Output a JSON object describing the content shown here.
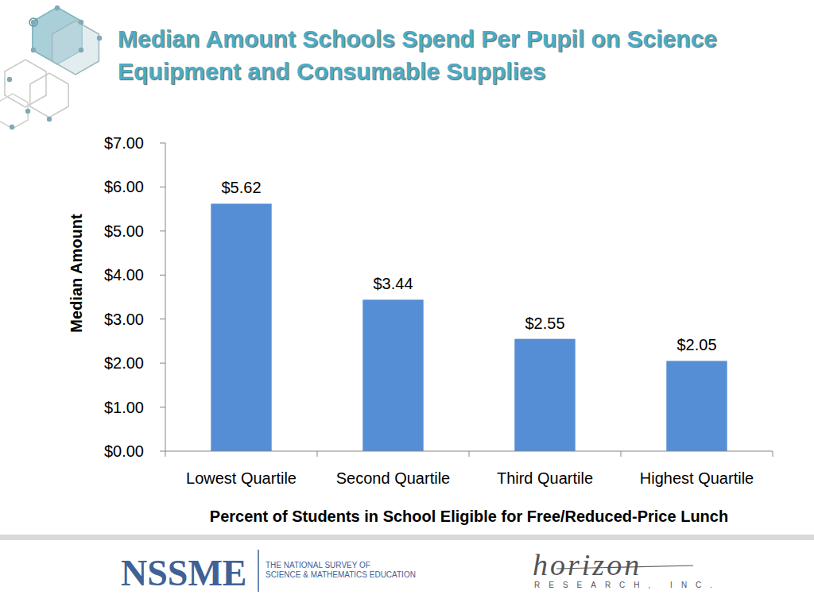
{
  "chart_data": {
    "type": "bar",
    "title": "Median Amount Schools Spend Per Pupil on Science Equipment and Consumable Supplies",
    "x_label": "Percent of Students in School Eligible for Free/Reduced-Price Lunch",
    "y_label": "Median Amount",
    "categories": [
      "Lowest Quartile",
      "Second Quartile",
      "Third Quartile",
      "Highest Quartile"
    ],
    "values": [
      5.62,
      3.44,
      2.55,
      2.05
    ],
    "value_labels": [
      "$5.62",
      "$3.44",
      "$2.55",
      "$2.05"
    ],
    "color": "#558ed5",
    "ylim": [
      0,
      7
    ],
    "yticks": [
      {
        "value": 0,
        "label": "$0.00"
      },
      {
        "value": 1,
        "label": "$1.00"
      },
      {
        "value": 2,
        "label": "$2.00"
      },
      {
        "value": 3,
        "label": "$3.00"
      },
      {
        "value": 4,
        "label": "$4.00"
      },
      {
        "value": 5,
        "label": "$5.00"
      },
      {
        "value": 6,
        "label": "$6.00"
      },
      {
        "value": 7,
        "label": "$7.00"
      }
    ],
    "grid": false,
    "data_labels": true
  },
  "footer": {
    "logo": "NSSME",
    "survey_lines": [
      "THE NATIONAL SURVEY OF",
      "SCIENCE & MATHEMATICS EDUCATION"
    ],
    "partner_name": "horizon",
    "partner_sub": "RESEARCH, INC."
  }
}
